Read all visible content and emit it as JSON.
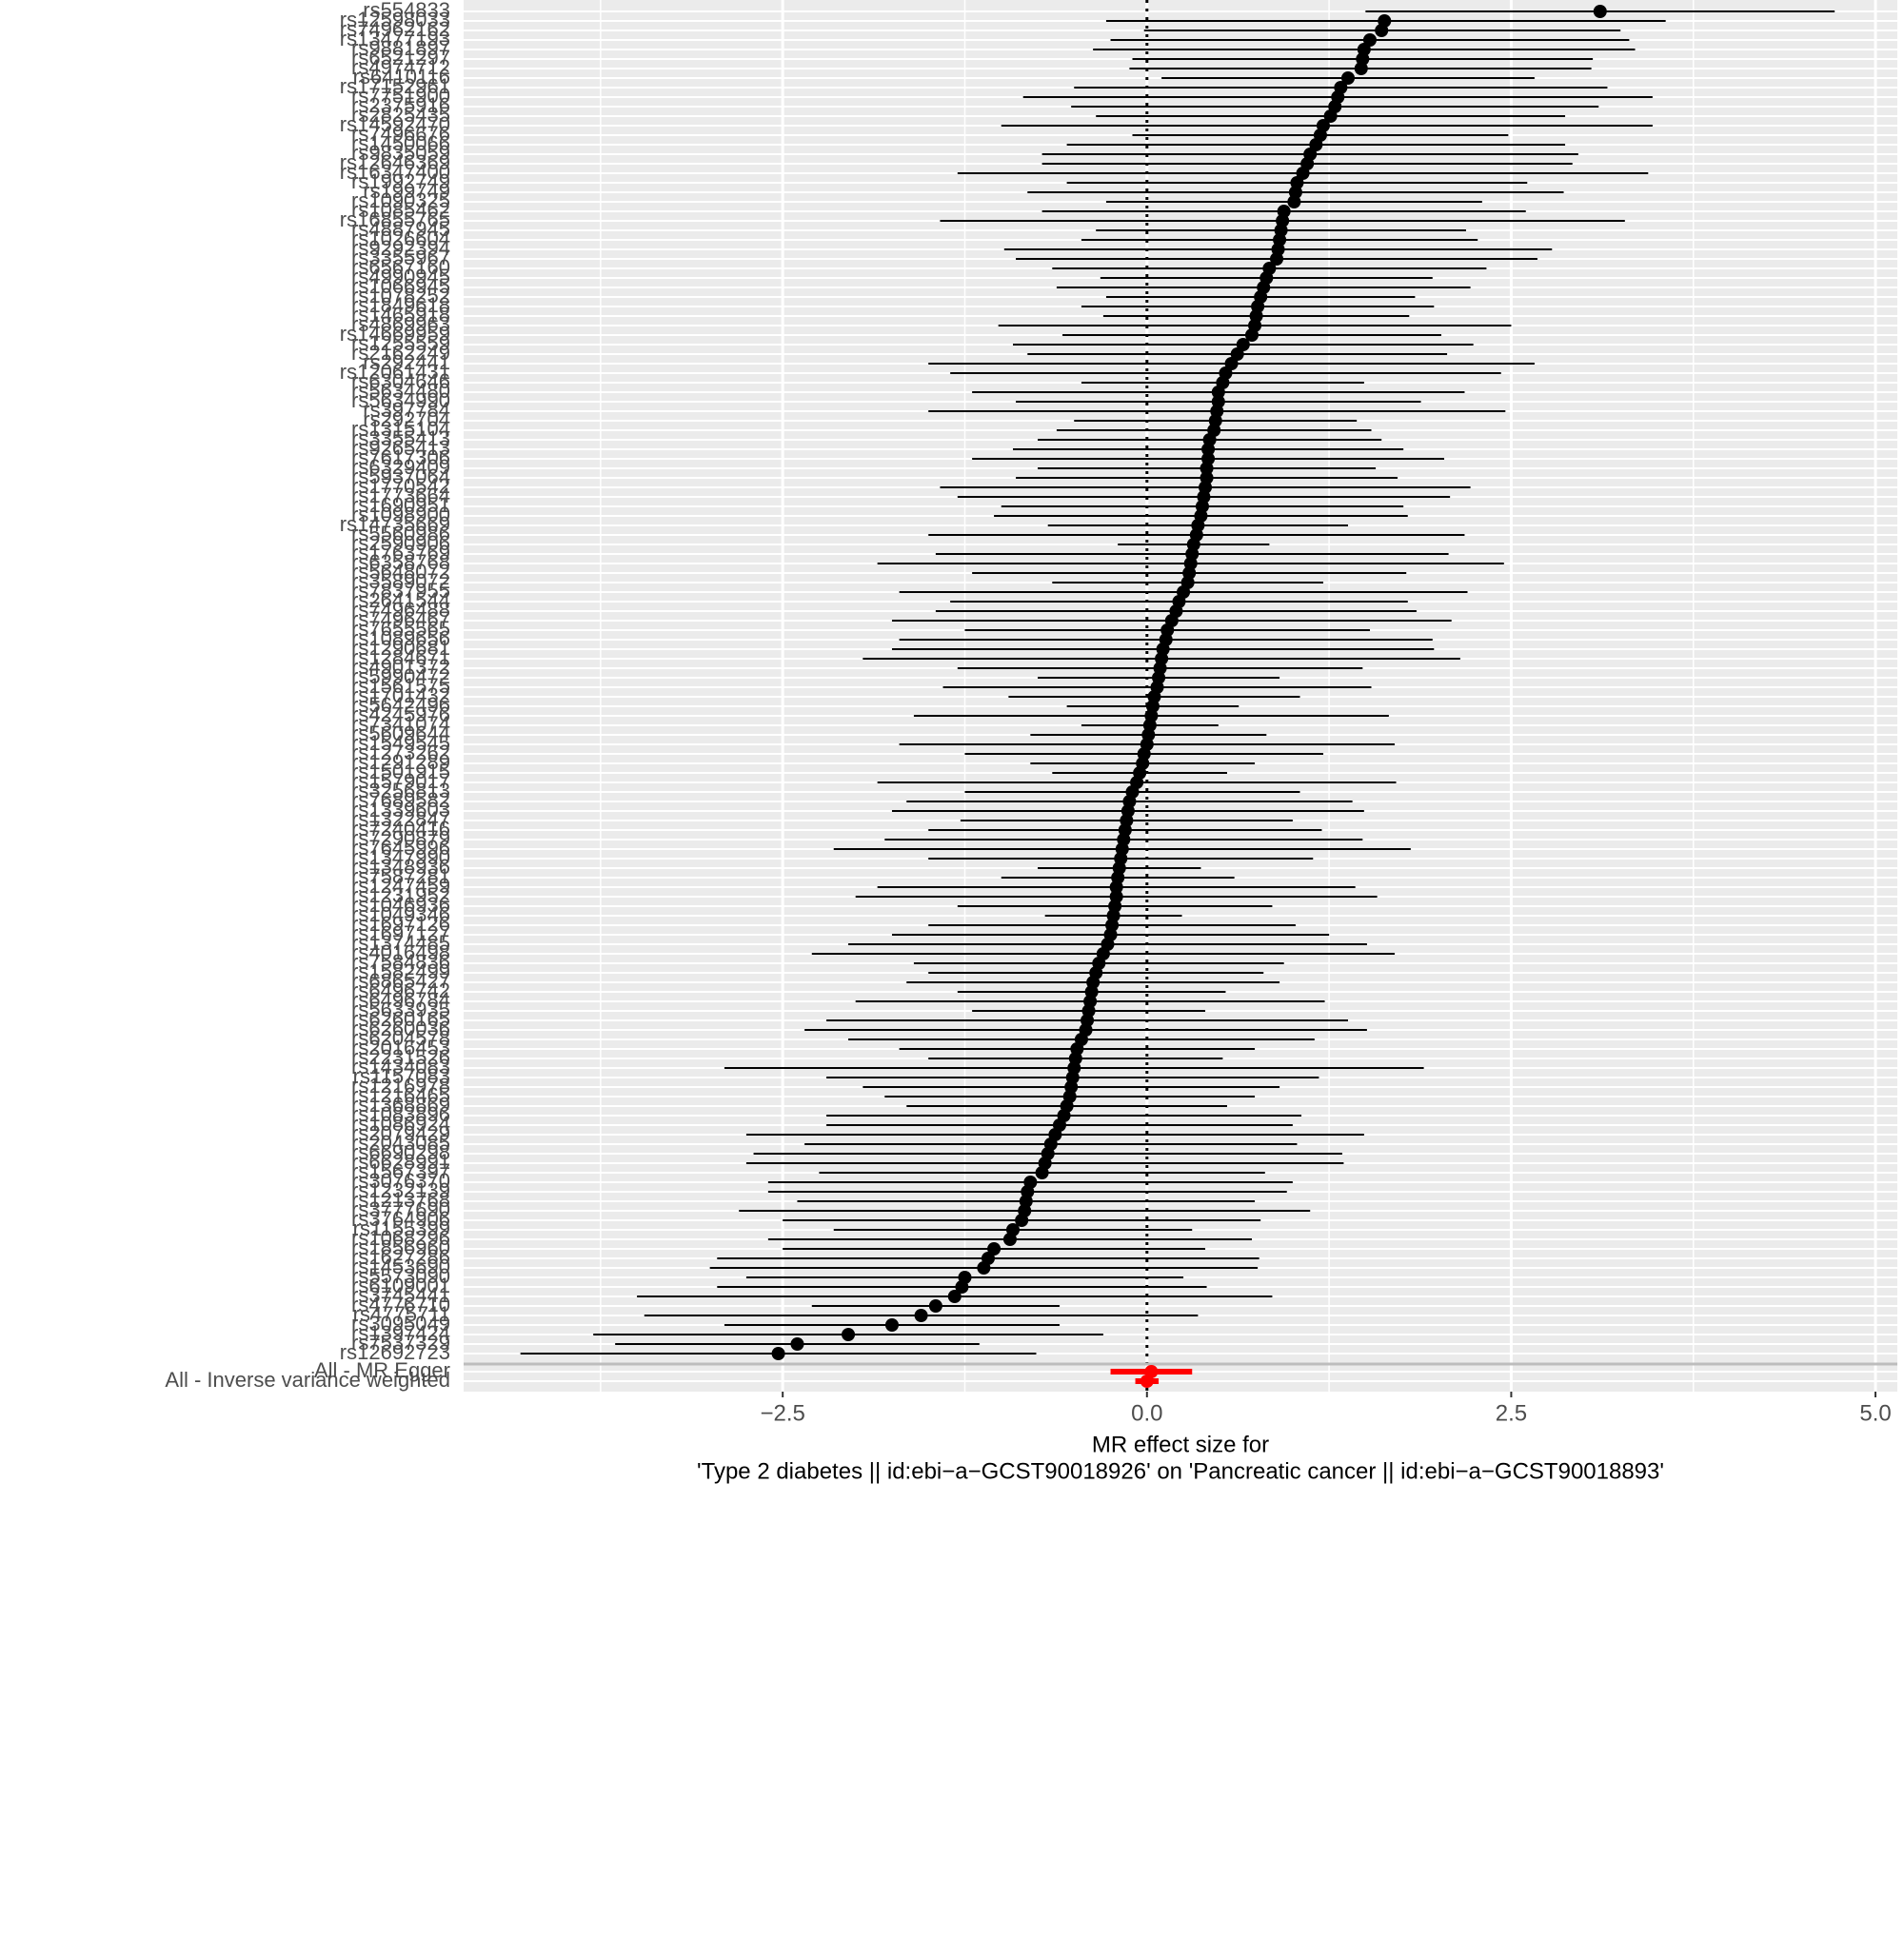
{
  "chart_data": {
    "type": "forest",
    "categories": [
      "rs554833",
      "rs12598033",
      "rs74962162",
      "rs13477193",
      "rs9881897",
      "rs6521297",
      "rs4974712",
      "rs6410116",
      "rs17152961",
      "rs7751900",
      "rs2375916",
      "rs2825435",
      "rs14592470",
      "rs7496676",
      "rs1450066",
      "rs9835059",
      "rs12646369",
      "rs16347400",
      "rs1992749",
      "rs199749",
      "rs1090325",
      "rs1085462",
      "rs16855765",
      "rs4887945",
      "rs1026604",
      "rs9292394",
      "rs3355967",
      "rs6567160",
      "rs4990945",
      "rs1066945",
      "rs1078252",
      "rs1849618",
      "rs1465918",
      "rs4869963",
      "rs14669959",
      "rs1255559",
      "rs2162249",
      "rs292441",
      "rs12061431",
      "rs6304646",
      "rs5634480",
      "rs5634990",
      "rs397784",
      "rs292704",
      "rs1315104",
      "rs3355413",
      "rs9265413",
      "rs7617306",
      "rs6329409",
      "rs5937064",
      "rs1770542",
      "rs1773664",
      "rs1690951",
      "rs1098900",
      "rs14735669",
      "rs5560986",
      "rs2590906",
      "rs1763769",
      "rs6358768",
      "rs5648072",
      "rs3589072",
      "rs7837955",
      "rs2641544",
      "rs7496488",
      "rs7496467",
      "rs7655565",
      "rs1089656",
      "rs1290681",
      "rs1284671",
      "rs4901372",
      "rs5990472",
      "rs1561575",
      "rs1701432",
      "rs5642496",
      "rs4245976",
      "rs7341074",
      "rs5609644",
      "rs1549545",
      "rs1273262",
      "rs1291289",
      "rs1501915",
      "rs1579017",
      "rs3256813",
      "rs7689582",
      "rs1339603",
      "rs1322847",
      "rs7240416",
      "rs7290879",
      "rs7645996",
      "rs1347990",
      "rs1348936",
      "rs7587281",
      "rs1247459",
      "rs1231952",
      "rs1046936",
      "rs1049346",
      "rs1697126",
      "rs1697127",
      "rs1374485",
      "rs4016498",
      "rs7584836",
      "rs1582499",
      "rs6865427",
      "rs6496742",
      "rs6496784",
      "rs5633935",
      "rs6260165",
      "rs6260036",
      "rs6204578",
      "rs2016453",
      "rs2231526",
      "rs1434083",
      "rs1157083",
      "rs1216978",
      "rs1216465",
      "rs1368869",
      "rs1083896",
      "rs1086924",
      "rs2079429",
      "rs2043085",
      "rs6690298",
      "rs6628991",
      "rs1567397",
      "rs3076370",
      "rs1232139",
      "rs1213768",
      "rs3777690",
      "rs3764906",
      "rs1155399",
      "rs1068296",
      "rs1856960",
      "rs1627286",
      "rs1453690",
      "rs5573090",
      "rs6109001",
      "rs3745441",
      "rs4776710",
      "rs4775711",
      "rs3095049",
      "rs1397424",
      "rs7537329",
      "rs12692723"
    ],
    "values": [
      3.11,
      1.63,
      1.61,
      1.53,
      1.49,
      1.48,
      1.47,
      1.38,
      1.33,
      1.31,
      1.29,
      1.26,
      1.21,
      1.19,
      1.16,
      1.12,
      1.1,
      1.07,
      1.03,
      1.02,
      1.01,
      0.94,
      0.93,
      0.92,
      0.91,
      0.9,
      0.89,
      0.84,
      0.82,
      0.8,
      0.78,
      0.76,
      0.75,
      0.74,
      0.72,
      0.66,
      0.62,
      0.58,
      0.54,
      0.52,
      0.49,
      0.49,
      0.48,
      0.47,
      0.46,
      0.43,
      0.42,
      0.42,
      0.41,
      0.41,
      0.4,
      0.39,
      0.38,
      0.37,
      0.35,
      0.34,
      0.32,
      0.31,
      0.3,
      0.29,
      0.28,
      0.25,
      0.22,
      0.2,
      0.17,
      0.14,
      0.13,
      0.11,
      0.1,
      0.09,
      0.08,
      0.07,
      0.05,
      0.04,
      0.03,
      0.02,
      0.01,
      0,
      -0.02,
      -0.03,
      -0.05,
      -0.07,
      -0.1,
      -0.12,
      -0.13,
      -0.14,
      -0.15,
      -0.16,
      -0.17,
      -0.18,
      -0.19,
      -0.2,
      -0.21,
      -0.21,
      -0.22,
      -0.23,
      -0.24,
      -0.25,
      -0.27,
      -0.3,
      -0.33,
      -0.35,
      -0.37,
      -0.38,
      -0.39,
      -0.4,
      -0.41,
      -0.42,
      -0.45,
      -0.48,
      -0.49,
      -0.5,
      -0.51,
      -0.52,
      -0.53,
      -0.55,
      -0.57,
      -0.6,
      -0.63,
      -0.66,
      -0.68,
      -0.7,
      -0.72,
      -0.8,
      -0.82,
      -0.83,
      -0.84,
      -0.86,
      -0.92,
      -0.94,
      -1.05,
      -1.09,
      -1.12,
      -1.25,
      -1.27,
      -1.32,
      -1.45,
      -1.55,
      -1.75,
      -2.05,
      -2.4,
      -2.53
    ],
    "ci_lower": [
      1.5,
      -0.28,
      -0.02,
      -0.25,
      -0.37,
      -0.1,
      -0.12,
      0.1,
      -0.5,
      -0.85,
      -0.52,
      -0.35,
      -1,
      -0.1,
      -0.55,
      -0.72,
      -0.72,
      -1.3,
      -0.55,
      -0.82,
      -0.28,
      -0.72,
      -1.42,
      -0.35,
      -0.45,
      -0.98,
      -0.9,
      -0.65,
      -0.32,
      -0.62,
      -0.28,
      -0.45,
      -0.3,
      -1.02,
      -0.58,
      -0.92,
      -0.82,
      -1.5,
      -1.35,
      -0.45,
      -1.2,
      -0.9,
      -1.5,
      -0.5,
      -0.62,
      -0.75,
      -0.92,
      -1.2,
      -0.75,
      -0.9,
      -1.42,
      -1.3,
      -1,
      -1.05,
      -0.68,
      -1.5,
      -0.2,
      -1.45,
      -1.85,
      -1.2,
      -0.65,
      -1.7,
      -1.35,
      -1.45,
      -1.75,
      -1.25,
      -1.7,
      -1.75,
      -1.95,
      -1.3,
      -0.75,
      -1.4,
      -0.95,
      -0.55,
      -1.6,
      -0.45,
      -0.8,
      -1.7,
      -1.25,
      -0.8,
      -0.65,
      -1.85,
      -1.25,
      -1.65,
      -1.75,
      -1.28,
      -1.5,
      -1.8,
      -2.15,
      -1.5,
      -0.75,
      -1,
      -1.85,
      -2,
      -1.3,
      -0.7,
      -1.5,
      -1.75,
      -2.05,
      -2.3,
      -1.6,
      -1.5,
      -1.65,
      -1.3,
      -2,
      -1.2,
      -2.2,
      -2.35,
      -2.05,
      -1.7,
      -1.5,
      -2.9,
      -2.2,
      -1.95,
      -1.8,
      -1.65,
      -2.2,
      -2.2,
      -2.75,
      -2.35,
      -2.7,
      -2.75,
      -2.25,
      -2.6,
      -2.6,
      -2.4,
      -2.8,
      -2.5,
      -2.15,
      -2.6,
      -2.5,
      -2.95,
      -3,
      -2.75,
      -2.95,
      -3.5,
      -2.3,
      -3.45,
      -2.9,
      -3.8,
      -3.65,
      -4.3
    ],
    "ci_upper": [
      4.72,
      3.56,
      3.25,
      3.31,
      3.35,
      3.06,
      3.05,
      2.66,
      3.16,
      3.47,
      3.1,
      2.87,
      3.47,
      2.48,
      2.87,
      2.96,
      2.92,
      3.44,
      2.61,
      2.86,
      2.3,
      2.6,
      3.28,
      2.19,
      2.27,
      2.78,
      2.68,
      2.33,
      1.96,
      2.22,
      1.84,
      1.97,
      1.8,
      2.5,
      2.02,
      2.24,
      2.06,
      2.66,
      2.43,
      1.49,
      2.18,
      1.88,
      2.46,
      1.44,
      1.54,
      1.61,
      1.76,
      2.04,
      1.57,
      1.72,
      2.22,
      2.08,
      1.76,
      1.79,
      1.38,
      2.18,
      0.84,
      2.07,
      2.45,
      1.78,
      1.21,
      2.2,
      1.79,
      1.85,
      2.09,
      1.53,
      1.96,
      1.97,
      2.15,
      1.48,
      0.91,
      1.54,
      1.05,
      0.63,
      1.66,
      0.49,
      0.82,
      1.7,
      1.21,
      0.74,
      0.55,
      1.71,
      1.05,
      1.41,
      1.49,
      1,
      1.2,
      1.48,
      1.81,
      1.14,
      0.37,
      0.6,
      1.43,
      1.58,
      0.86,
      0.24,
      1.02,
      1.25,
      1.51,
      1.7,
      0.94,
      0.8,
      0.91,
      0.54,
      1.22,
      0.4,
      1.38,
      1.51,
      1.15,
      0.74,
      0.52,
      1.9,
      1.18,
      0.91,
      0.74,
      0.55,
      1.06,
      1,
      1.49,
      1.03,
      1.34,
      1.35,
      0.81,
      1,
      0.96,
      0.74,
      1.12,
      0.78,
      0.31,
      0.72,
      0.4,
      0.77,
      0.76,
      0.25,
      0.41,
      0.86,
      -0.6,
      0.35,
      -0.6,
      -0.3,
      -1.15,
      -0.76
    ],
    "color": "#000000",
    "summary": {
      "categories": [
        "All - MR Egger",
        "All - Inverse variance weighted"
      ],
      "values": [
        0.03,
        0
      ],
      "ci_lower": [
        -0.25,
        -0.08
      ],
      "ci_upper": [
        0.31,
        0.08
      ],
      "color": "#ff0000"
    },
    "xlim": [
      -4.69,
      5.15
    ],
    "xticks": [
      {
        "value": -2.5,
        "label": "−2.5"
      },
      {
        "value": 0,
        "label": "0.0"
      },
      {
        "value": 2.5,
        "label": "2.5"
      },
      {
        "value": 5,
        "label": "5.0"
      }
    ],
    "xminorticks": [
      -3.75,
      -1.25,
      1.25,
      3.75
    ],
    "grid": true,
    "xlabel": [
      "MR effect size for",
      "'Type 2 diabetes || id:ebi−a−GCST90018926' on 'Pancreatic cancer || id:ebi−a−GCST90018893'"
    ]
  }
}
